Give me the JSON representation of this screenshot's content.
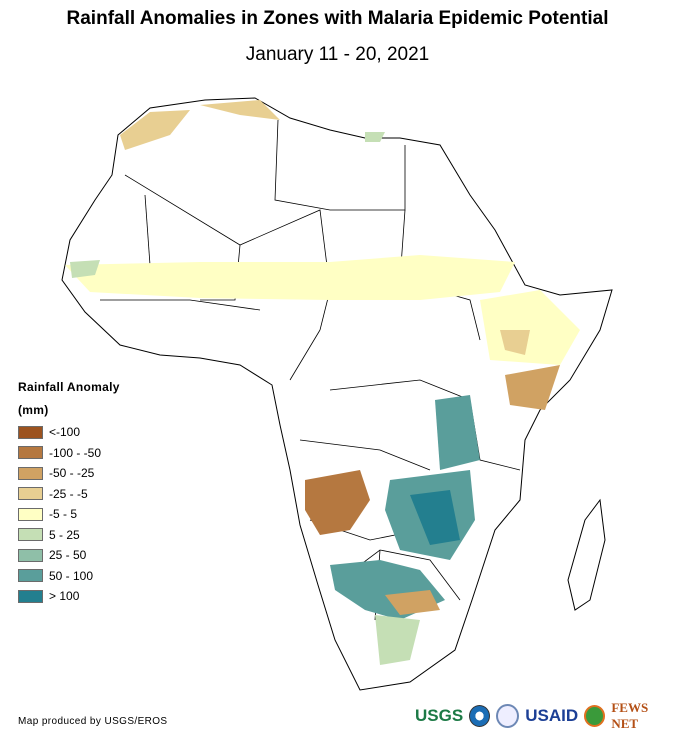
{
  "title": "Rainfall Anomalies in Zones with Malaria Epidemic Potential",
  "subtitle": "January 11 - 20, 2021",
  "legend": {
    "title": "Rainfall Anomaly",
    "unit": "(mm)",
    "items": [
      {
        "label": "<-100",
        "color": "#9c5320"
      },
      {
        "label": "-100 - -50",
        "color": "#b57840"
      },
      {
        "label": "-50 - -25",
        "color": "#d0a263"
      },
      {
        "label": "-25 - -5",
        "color": "#e8cf92"
      },
      {
        "label": "-5 - 5",
        "color": "#ffffc4"
      },
      {
        "label": "5 - 25",
        "color": "#c5dfb5"
      },
      {
        "label": "25 - 50",
        "color": "#8fbfa8"
      },
      {
        "label": "50 - 100",
        "color": "#5a9e9b"
      },
      {
        "label": "> 100",
        "color": "#237f8f"
      }
    ]
  },
  "credit": "Map produced by USGS/EROS",
  "logos": {
    "usgs": "USGS",
    "usaid": "USAID",
    "fews": "FEWS NET"
  }
}
